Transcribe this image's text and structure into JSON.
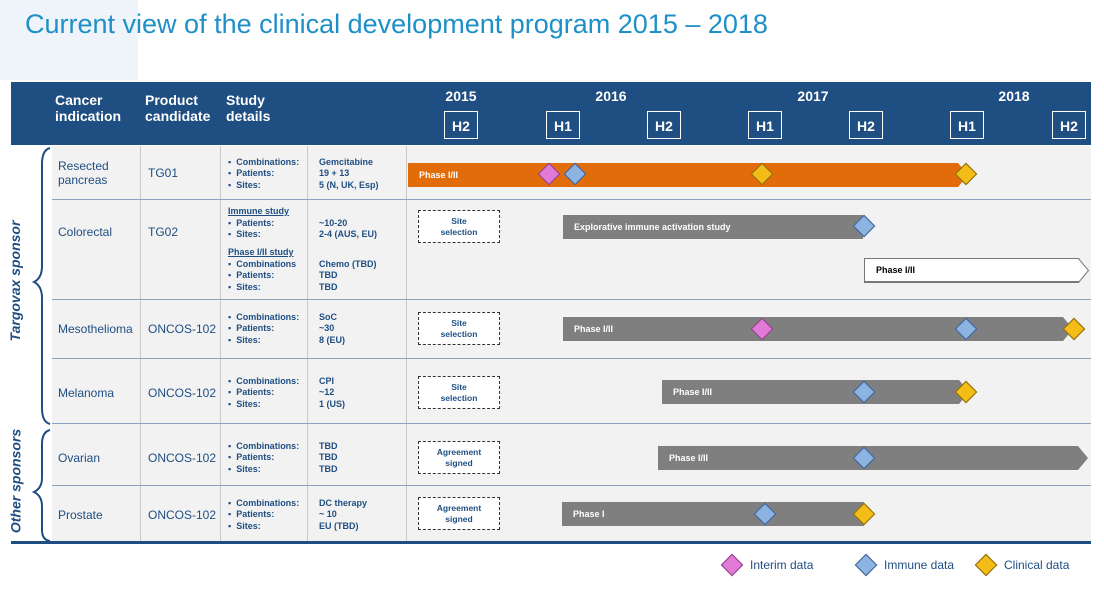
{
  "title": "Current view of the clinical development program 2015 – 2018",
  "header": {
    "cancer_indication": "Cancer\nindication",
    "product_candidate": "Product\ncandidate",
    "study_details": "Study\ndetails",
    "years": [
      "2015",
      "2016",
      "2017",
      "2018"
    ],
    "halves": [
      "H2",
      "H1",
      "H2",
      "H1",
      "H2",
      "H1",
      "H2"
    ]
  },
  "sponsors": {
    "targovax": "Targovax sponsor",
    "other": "Other sponsors"
  },
  "rows": [
    {
      "indication": "Resected\npancreas",
      "product": "TG01",
      "details_labels": "▪  Combinations:\n▪  Patients:\n▪  Sites:",
      "details_values": "Gemcitabine\n19 + 13\n5 (N, UK, Esp)",
      "bar_label": "Phase I/II"
    },
    {
      "indication": "Colorectal",
      "product": "TG02",
      "immune_study_title": "Immune study",
      "immune_labels": "▪  Patients:\n▪  Sites:",
      "immune_values": "~10-20\n2-4 (AUS, EU)",
      "phase_study_title": "Phase I/II study",
      "phase_labels": "▪  Combinations\n▪  Patients:\n▪  Sites:",
      "phase_values": "Chemo (TBD)\nTBD\nTBD",
      "box_label": "Site\nselection",
      "bar_label": "Explorative immune activation study",
      "bar2_label": "Phase I/II"
    },
    {
      "indication": "Mesothelioma",
      "product": "ONCOS-102",
      "details_labels": "▪  Combinations:\n▪  Patients:\n▪  Sites:",
      "details_values": "SoC\n~30\n8 (EU)",
      "box_label": "Site\nselection",
      "bar_label": "Phase I/II"
    },
    {
      "indication": "Melanoma",
      "product": "ONCOS-102",
      "details_labels": "▪  Combinations:\n▪  Patients:\n▪  Sites:",
      "details_values": "CPI\n~12\n1 (US)",
      "box_label": "Site\nselection",
      "bar_label": "Phase I/II"
    },
    {
      "indication": "Ovarian",
      "product": "ONCOS-102",
      "details_labels": "▪  Combinations:\n▪  Patients:\n▪  Sites:",
      "details_values": "TBD\nTBD\nTBD",
      "box_label": "Agreement\nsigned",
      "bar_label": "Phase I/II"
    },
    {
      "indication": "Prostate",
      "product": "ONCOS-102",
      "details_labels": "▪  Combinations:\n▪  Patients:\n▪  Sites:",
      "details_values": "DC therapy\n~ 10\nEU (TBD)",
      "box_label": "Agreement\nsigned",
      "bar_label": "Phase I"
    }
  ],
  "legend": {
    "interim": "Interim data",
    "immune": "Immune data",
    "clinical": "Clinical data"
  },
  "colors": {
    "header": "#1f4e82",
    "title": "#1e90c8",
    "orange_bar": "#e36c0a",
    "gray_bar": "#7f7f7f",
    "interim": "#e07ad6",
    "immune": "#8db3e2",
    "clinical": "#f3bc16"
  }
}
